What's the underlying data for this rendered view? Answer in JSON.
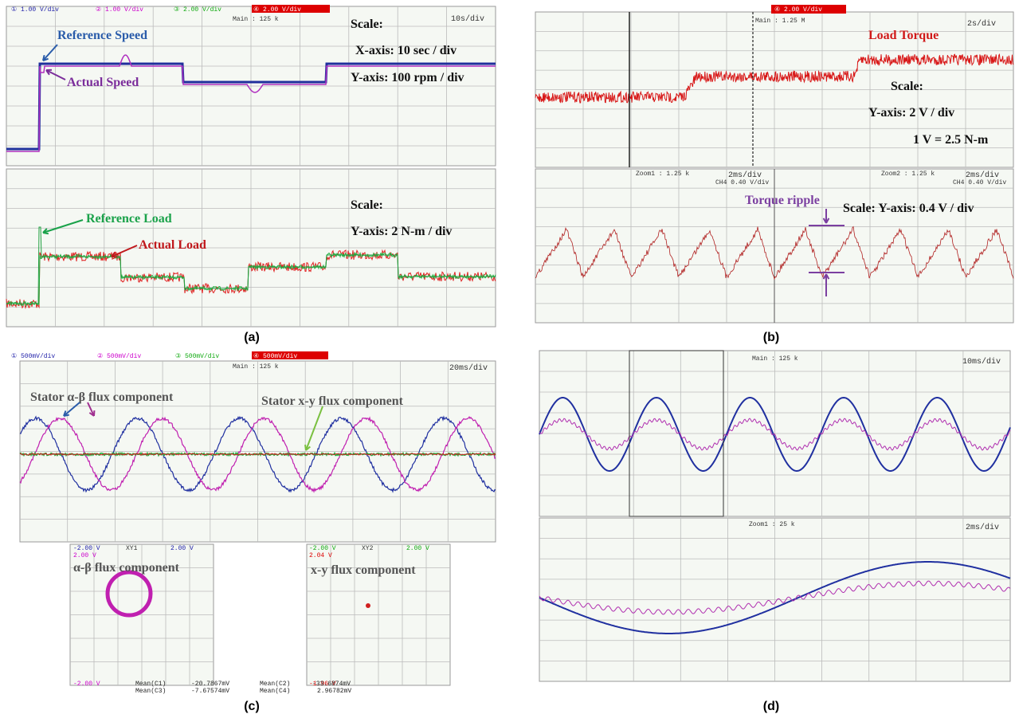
{
  "a": {
    "label": "(a)",
    "channels": [
      "① 1.00 V/div",
      "② 1.00 V/div",
      "③ 2.00 V/div",
      "④ 2.00 V/div"
    ],
    "main": "Main : 125 k",
    "timebase": "10s/div",
    "reference_speed": "Reference Speed",
    "actual_speed": "Actual Speed",
    "scale_1": "Scale:",
    "x_axis": "X-axis: 10 sec / div",
    "y_axis_1": "Y-axis: 100 rpm / div",
    "scale_2": "Scale:",
    "y_axis_2": "Y-axis: 2 N-m / div",
    "reference_load": "Reference Load",
    "actual_load": "Actual Load"
  },
  "b": {
    "label": "(b)",
    "channel": "④ 2.00 V/div",
    "main": "Main : 1.25 M",
    "timebase": "2s/div",
    "load_torque": "Load Torque",
    "scale": "Scale:",
    "y_axis": "Y-axis: 2 V / div",
    "conversion": "1 V = 2.5 N-m",
    "zoom1": "Zoom1 : 1.25 k",
    "zoom1_timebase": "2ms/div",
    "zoom1_ch": "CH4  0.40 V/div",
    "zoom2": "Zoom2 : 1.25 k",
    "zoom2_timebase": "2ms/div",
    "zoom2_ch": "CH4  0.40 V/div",
    "torque_ripple": "Torque ripple",
    "zoom_scale": "Scale: Y-axis: 0.4 V / div"
  },
  "c": {
    "label": "(c)",
    "channels": [
      "① 500mV/div",
      "② 500mV/div",
      "③ 500mV/div",
      "④ 500mV/div"
    ],
    "main": "Main : 125 k",
    "timebase": "20ms/div",
    "alpha_beta_label": "Stator α-β flux component",
    "xy_label": "Stator x-y flux component",
    "xy1": {
      "tag": "XY1",
      "x_min": "-2.00 V",
      "x_max": "2.00 V",
      "y_max": "2.00 V",
      "y_min": "-2.00 V",
      "title": "α-β flux component"
    },
    "xy2": {
      "tag": "XY2",
      "x_min": "-2.00 V",
      "x_max": "2.00 V",
      "y_max": "2.04 V",
      "y_min": "-1.96 V",
      "title": "x-y flux component"
    },
    "measurements": [
      [
        "Mean(C1)",
        "-20.7867mV",
        "Mean(C2)",
        "-33.6874mV"
      ],
      [
        "Mean(C3)",
        "-7.67574mV",
        "Mean(C4)",
        "2.96782mV"
      ]
    ]
  },
  "d": {
    "label": "(d)",
    "main": "Main : 125 k",
    "timebase": "10ms/div",
    "zoom1": "Zoom1 : 25 k",
    "zoom1_timebase": "2ms/div"
  }
}
